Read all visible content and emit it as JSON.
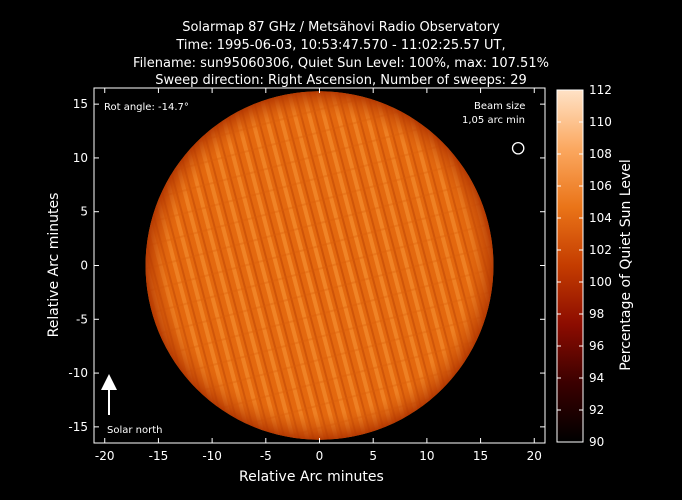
{
  "title_lines": [
    "Solarmap 87 GHz / Metsähovi Radio Observatory",
    "Time: 1995-06-03, 10:53:47.570 - 11:02:25.57 UT,",
    "Filename: sun95060306, Quiet Sun Level: 100%, max: 107.51%",
    "Sweep direction: Right Ascension, Number of sweeps: 29"
  ],
  "axes": {
    "xlabel": "Relative Arc minutes",
    "ylabel": "Relative Arc minutes",
    "xlim": [
      -21,
      21
    ],
    "ylim": [
      -16.5,
      16.5
    ],
    "xticks": [
      -20,
      -15,
      -10,
      -5,
      0,
      5,
      10,
      15,
      20
    ],
    "yticks": [
      -15,
      -10,
      -5,
      0,
      5,
      10,
      15
    ]
  },
  "annotations": {
    "rot_angle": "Rot angle: -14.7°",
    "beam_size_line1": "Beam size",
    "beam_size_line2": "1,05 arc min",
    "solar_north": "Solar north"
  },
  "colorbar": {
    "label": "Percentage of Quiet Sun Level",
    "min": 90,
    "max": 112,
    "ticks": [
      90,
      92,
      94,
      96,
      98,
      100,
      102,
      104,
      106,
      108,
      110,
      112
    ],
    "colors": [
      "#000000",
      "#3a0000",
      "#8c0c00",
      "#c43c00",
      "#ea7418",
      "#fba860",
      "#ffe2c6"
    ]
  },
  "sun_disk": {
    "center_arcmin": [
      0,
      0
    ],
    "radius_arcmin": 16.2,
    "fill_color": "#e66e10",
    "rot_angle_deg": -14.7,
    "beam_center_arcmin": [
      18.5,
      10.9
    ],
    "beam_diameter_arcmin": 1.05
  }
}
